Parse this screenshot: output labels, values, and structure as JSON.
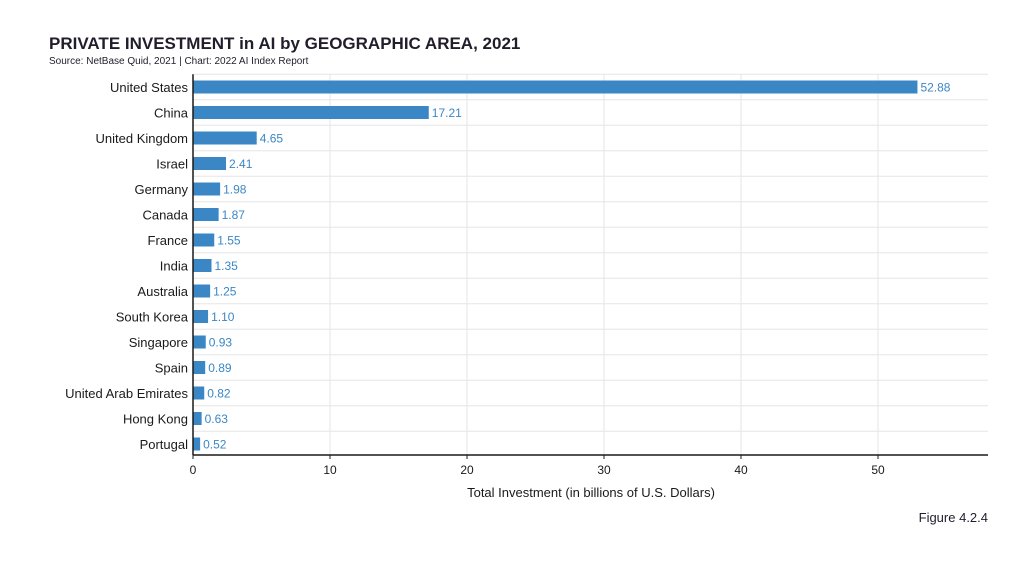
{
  "title": "PRIVATE INVESTMENT in AI by GEOGRAPHIC AREA, 2021",
  "subtitle": "Source: NetBase Quid, 2021 | Chart: 2022 AI Index Report",
  "figure_label": "Figure 4.2.4",
  "colors": {
    "bar": "#3b87c6",
    "label": "#3b87c6",
    "grid": "#e6e6e6",
    "axis": "#1a1a1a"
  },
  "chart_data": {
    "type": "bar",
    "orientation": "horizontal",
    "title": "PRIVATE INVESTMENT in AI by GEOGRAPHIC AREA, 2021",
    "xlabel": "Total Investment (in billions of U.S. Dollars)",
    "ylabel": "",
    "xlim": [
      0,
      58
    ],
    "xticks": [
      0,
      10,
      20,
      30,
      40,
      50
    ],
    "grid": true,
    "categories": [
      "United States",
      "China",
      "United Kingdom",
      "Israel",
      "Germany",
      "Canada",
      "France",
      "India",
      "Australia",
      "South Korea",
      "Singapore",
      "Spain",
      "United Arab Emirates",
      "Hong Kong",
      "Portugal"
    ],
    "values": [
      52.88,
      17.21,
      4.65,
      2.41,
      1.98,
      1.87,
      1.55,
      1.35,
      1.25,
      1.1,
      0.93,
      0.89,
      0.82,
      0.63,
      0.52
    ],
    "value_labels": [
      "52.88",
      "17.21",
      "4.65",
      "2.41",
      "1.98",
      "1.87",
      "1.55",
      "1.35",
      "1.25",
      "1.10",
      "0.93",
      "0.89",
      "0.82",
      "0.63",
      "0.52"
    ]
  }
}
